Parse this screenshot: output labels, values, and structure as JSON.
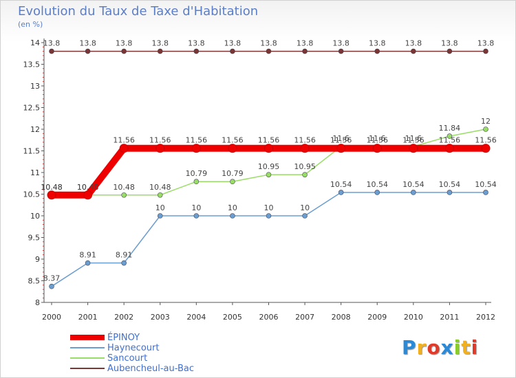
{
  "chart_data": {
    "type": "line",
    "title": "Evolution du Taux de Taxe d'Habitation",
    "subtitle": "(en %)",
    "x": [
      "2000",
      "2001",
      "2002",
      "2003",
      "2004",
      "2005",
      "2006",
      "2007",
      "2008",
      "2009",
      "2010",
      "2011",
      "2012"
    ],
    "ylim": [
      8,
      14
    ],
    "yticks": [
      "8",
      "8.5",
      "9",
      "9.5",
      "10",
      "10.5",
      "11",
      "11.5",
      "12",
      "12.5",
      "13",
      "13.5",
      "14"
    ],
    "grid": false,
    "series": [
      {
        "name": "Aubencheul-au-Bac",
        "color": "#7a3535",
        "values": [
          13.8,
          13.8,
          13.8,
          13.8,
          13.8,
          13.8,
          13.8,
          13.8,
          13.8,
          13.8,
          13.8,
          13.8,
          13.8
        ],
        "labels": [
          "13.8",
          "13.8",
          "13.8",
          "13.8",
          "13.8",
          "13.8",
          "13.8",
          "13.8",
          "13.8",
          "13.8",
          "13.8",
          "13.8",
          "13.8"
        ]
      },
      {
        "name": "Haynecourt",
        "color": "#6a9dd0",
        "values": [
          8.37,
          8.91,
          8.91,
          10,
          10,
          10,
          10,
          10,
          10.54,
          10.54,
          10.54,
          10.54,
          10.54
        ],
        "labels": [
          "8.37",
          "8.91",
          "8.91",
          "10",
          "10",
          "10",
          "10",
          "10",
          "10.54",
          "10.54",
          "10.54",
          "10.54",
          "10.54"
        ]
      },
      {
        "name": "Sancourt",
        "color": "#99dd66",
        "values": [
          10.48,
          10.48,
          10.48,
          10.48,
          10.79,
          10.79,
          10.95,
          10.95,
          11.6,
          11.6,
          11.6,
          11.84,
          12
        ],
        "labels": [
          "10.48",
          "10.48",
          "10.48",
          "10.48",
          "10.79",
          "10.79",
          "10.95",
          "10.95",
          "11.6",
          "11.6",
          "11.6",
          "11.84",
          "12"
        ]
      },
      {
        "name": "ÉPINOY",
        "color": "#ee0000",
        "values": [
          10.48,
          10.48,
          11.56,
          11.56,
          11.56,
          11.56,
          11.56,
          11.56,
          11.56,
          11.56,
          11.56,
          11.56,
          11.56
        ],
        "labels": [
          "10.48",
          "10.48",
          "11.56",
          "11.56",
          "11.56",
          "11.56",
          "11.56",
          "11.56",
          "11.56",
          "11.56",
          "11.56",
          "11.56",
          "11.56"
        ]
      }
    ],
    "legend": [
      {
        "name": "ÉPINOY",
        "color": "#ee0000"
      },
      {
        "name": "Haynecourt",
        "color": "#6a9dd0"
      },
      {
        "name": "Sancourt",
        "color": "#99dd66"
      },
      {
        "name": "Aubencheul-au-Bac",
        "color": "#7a3535"
      }
    ]
  },
  "logo": {
    "letters": [
      "P",
      "r",
      "o",
      "x",
      "i",
      "t",
      "i"
    ],
    "colors": [
      "#2a8ad8",
      "#f0b020",
      "#e03a2a",
      "#2a8ad8",
      "#8acc2a",
      "#f0b020",
      "#e03a2a"
    ]
  }
}
